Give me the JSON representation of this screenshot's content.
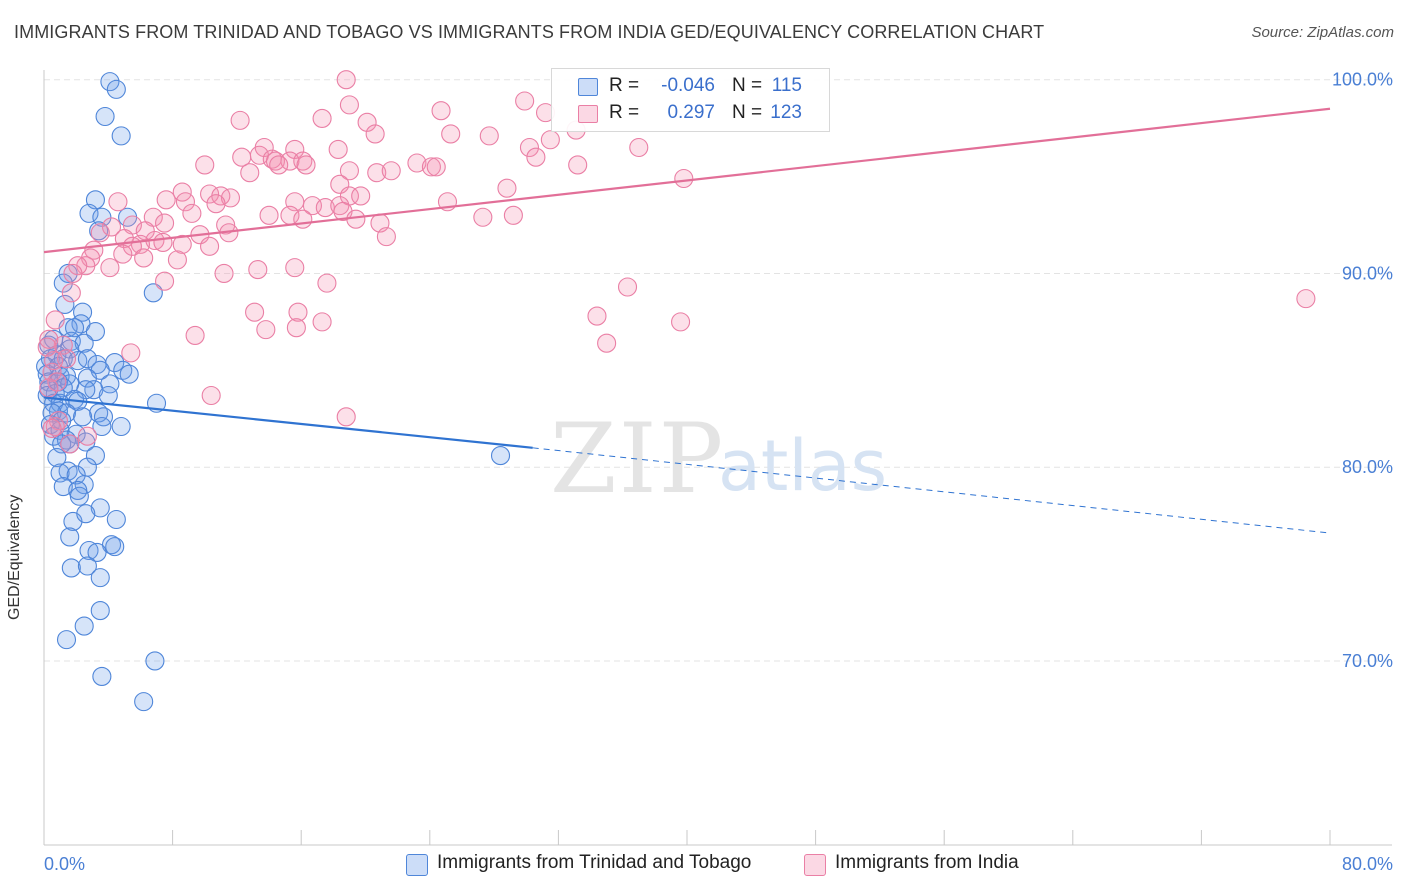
{
  "title": "IMMIGRANTS FROM TRINIDAD AND TOBAGO VS IMMIGRANTS FROM INDIA GED/EQUIVALENCY CORRELATION CHART",
  "source": "Source: ZipAtlas.com",
  "watermark": {
    "zip": "ZIP",
    "atlas": "atlas"
  },
  "colors": {
    "blue_fill": "rgba(109,158,235,0.28)",
    "blue_stroke": "#4f86d9",
    "blue_line": "#2f73d1",
    "pink_fill": "rgba(244,143,177,0.28)",
    "pink_stroke": "#ea7fa5",
    "pink_line": "#e26f98",
    "tick_label": "#4a7fd4"
  },
  "legend": {
    "rows": [
      {
        "r_label": "R =",
        "r_value": "-0.046",
        "n_label": "N =",
        "n_value": "115"
      },
      {
        "r_label": "R =",
        "r_value": "0.297",
        "n_label": "N =",
        "n_value": "123"
      }
    ]
  },
  "bottom_legend": {
    "series1": "Immigrants from Trinidad and Tobago",
    "series2": "Immigrants from India"
  },
  "chart_data": {
    "type": "scatter",
    "title": "IMMIGRANTS FROM TRINIDAD AND TOBAGO VS IMMIGRANTS FROM INDIA GED/EQUIVALENCY CORRELATION CHART",
    "xlabel": "",
    "ylabel": "GED/Equivalency",
    "xlim": [
      0,
      80
    ],
    "ylim": [
      60.5,
      100.5
    ],
    "x_tick_labels": [
      "0.0%",
      "80.0%"
    ],
    "y_ticks": [
      100,
      90,
      80,
      70
    ],
    "y_tick_labels": [
      "100.0%",
      "90.0%",
      "80.0%",
      "70.0%"
    ],
    "grid": true,
    "series": [
      {
        "name": "Immigrants from Trinidad and Tobago",
        "r": -0.046,
        "n": 115,
        "trend": {
          "x0": 0,
          "y0": 83.6,
          "x1": 30.4,
          "y1": 81.0,
          "dash_x1": 80,
          "dash_y1": 76.6
        },
        "points": [
          [
            4.1,
            99.9
          ],
          [
            4.5,
            99.5
          ],
          [
            3.8,
            98.1
          ],
          [
            4.8,
            97.1
          ],
          [
            3.2,
            93.8
          ],
          [
            2.8,
            93.1
          ],
          [
            3.6,
            92.9
          ],
          [
            5.2,
            92.9
          ],
          [
            3.4,
            92.2
          ],
          [
            6.8,
            89.0
          ],
          [
            1.5,
            90.0
          ],
          [
            1.2,
            89.5
          ],
          [
            1.3,
            88.4
          ],
          [
            2.4,
            88.0
          ],
          [
            2.3,
            87.4
          ],
          [
            1.5,
            87.2
          ],
          [
            1.9,
            87.2
          ],
          [
            3.2,
            87.0
          ],
          [
            0.6,
            86.6
          ],
          [
            1.7,
            86.5
          ],
          [
            2.5,
            86.4
          ],
          [
            0.3,
            86.3
          ],
          [
            1.6,
            86.1
          ],
          [
            0.8,
            85.8
          ],
          [
            0.4,
            85.6
          ],
          [
            1.2,
            85.6
          ],
          [
            2.1,
            85.5
          ],
          [
            2.7,
            85.6
          ],
          [
            4.4,
            85.4
          ],
          [
            3.3,
            85.3
          ],
          [
            0.1,
            85.2
          ],
          [
            0.9,
            85.2
          ],
          [
            3.5,
            85.0
          ],
          [
            4.9,
            85.0
          ],
          [
            0.2,
            84.8
          ],
          [
            1.0,
            84.7
          ],
          [
            1.4,
            84.7
          ],
          [
            5.3,
            84.8
          ],
          [
            2.7,
            84.6
          ],
          [
            0.3,
            84.4
          ],
          [
            0.9,
            84.4
          ],
          [
            1.6,
            84.3
          ],
          [
            4.1,
            84.3
          ],
          [
            0.3,
            84.0
          ],
          [
            1.2,
            84.1
          ],
          [
            3.1,
            84.0
          ],
          [
            2.6,
            84.0
          ],
          [
            0.7,
            83.8
          ],
          [
            0.2,
            83.7
          ],
          [
            4.0,
            83.7
          ],
          [
            0.6,
            83.3
          ],
          [
            1.9,
            83.5
          ],
          [
            1.0,
            83.3
          ],
          [
            2.1,
            83.4
          ],
          [
            7.0,
            83.3
          ],
          [
            0.9,
            82.9
          ],
          [
            1.4,
            82.8
          ],
          [
            3.4,
            82.8
          ],
          [
            0.5,
            82.8
          ],
          [
            2.4,
            82.6
          ],
          [
            3.7,
            82.6
          ],
          [
            1.1,
            82.4
          ],
          [
            0.4,
            82.2
          ],
          [
            3.6,
            82.1
          ],
          [
            4.8,
            82.1
          ],
          [
            1.0,
            81.9
          ],
          [
            0.6,
            81.6
          ],
          [
            2.0,
            81.7
          ],
          [
            1.4,
            81.4
          ],
          [
            2.6,
            81.3
          ],
          [
            1.1,
            81.2
          ],
          [
            1.6,
            81.2
          ],
          [
            0.8,
            80.5
          ],
          [
            3.2,
            80.6
          ],
          [
            2.7,
            80.0
          ],
          [
            1.5,
            79.8
          ],
          [
            1.0,
            79.7
          ],
          [
            2.0,
            79.6
          ],
          [
            2.5,
            79.1
          ],
          [
            1.2,
            79.0
          ],
          [
            2.1,
            78.8
          ],
          [
            2.2,
            78.5
          ],
          [
            3.5,
            77.9
          ],
          [
            1.8,
            77.2
          ],
          [
            2.6,
            77.6
          ],
          [
            4.5,
            77.3
          ],
          [
            1.6,
            76.4
          ],
          [
            4.2,
            76.0
          ],
          [
            4.4,
            75.9
          ],
          [
            2.8,
            75.7
          ],
          [
            3.3,
            75.6
          ],
          [
            1.7,
            74.8
          ],
          [
            2.7,
            74.9
          ],
          [
            3.5,
            74.3
          ],
          [
            3.5,
            72.6
          ],
          [
            2.5,
            71.8
          ],
          [
            1.4,
            71.1
          ],
          [
            6.9,
            70.0
          ],
          [
            3.6,
            69.2
          ],
          [
            6.2,
            67.9
          ],
          [
            28.4,
            80.6
          ]
        ]
      },
      {
        "name": "Immigrants from India",
        "r": 0.297,
        "n": 123,
        "trend": {
          "x0": 0,
          "y0": 91.1,
          "x1": 80,
          "y1": 98.5
        },
        "points": [
          [
            18.8,
            100.0
          ],
          [
            29.9,
            98.9
          ],
          [
            19.0,
            98.7
          ],
          [
            24.7,
            98.4
          ],
          [
            31.2,
            98.3
          ],
          [
            12.2,
            97.9
          ],
          [
            17.3,
            98.0
          ],
          [
            20.1,
            97.8
          ],
          [
            33.1,
            97.4
          ],
          [
            31.5,
            96.9
          ],
          [
            25.3,
            97.2
          ],
          [
            27.7,
            97.1
          ],
          [
            20.6,
            97.2
          ],
          [
            13.7,
            96.5
          ],
          [
            15.6,
            96.4
          ],
          [
            30.2,
            96.5
          ],
          [
            37.0,
            96.5
          ],
          [
            18.3,
            96.4
          ],
          [
            12.3,
            96.0
          ],
          [
            13.4,
            96.1
          ],
          [
            14.2,
            95.9
          ],
          [
            14.4,
            95.8
          ],
          [
            15.3,
            95.8
          ],
          [
            16.1,
            95.8
          ],
          [
            30.6,
            96.0
          ],
          [
            10.0,
            95.6
          ],
          [
            14.6,
            95.6
          ],
          [
            23.2,
            95.7
          ],
          [
            33.2,
            95.6
          ],
          [
            24.1,
            95.5
          ],
          [
            24.4,
            95.5
          ],
          [
            16.3,
            95.6
          ],
          [
            19.0,
            95.3
          ],
          [
            20.7,
            95.2
          ],
          [
            21.6,
            95.3
          ],
          [
            12.8,
            95.2
          ],
          [
            39.8,
            94.9
          ],
          [
            18.4,
            94.6
          ],
          [
            8.6,
            94.2
          ],
          [
            10.3,
            94.1
          ],
          [
            11.0,
            94.0
          ],
          [
            11.6,
            93.9
          ],
          [
            28.8,
            94.4
          ],
          [
            19.0,
            94.0
          ],
          [
            19.7,
            94.0
          ],
          [
            7.6,
            93.8
          ],
          [
            8.8,
            93.7
          ],
          [
            10.7,
            93.6
          ],
          [
            4.6,
            93.7
          ],
          [
            15.6,
            93.7
          ],
          [
            16.7,
            93.5
          ],
          [
            17.5,
            93.4
          ],
          [
            18.4,
            93.5
          ],
          [
            25.1,
            93.7
          ],
          [
            18.6,
            93.2
          ],
          [
            9.2,
            93.1
          ],
          [
            6.8,
            92.9
          ],
          [
            7.5,
            92.6
          ],
          [
            14.0,
            93.0
          ],
          [
            15.3,
            93.0
          ],
          [
            16.1,
            92.8
          ],
          [
            19.4,
            92.8
          ],
          [
            20.9,
            92.6
          ],
          [
            11.3,
            92.5
          ],
          [
            29.2,
            93.0
          ],
          [
            27.3,
            92.9
          ],
          [
            4.2,
            92.4
          ],
          [
            5.5,
            92.5
          ],
          [
            3.5,
            92.1
          ],
          [
            6.3,
            92.2
          ],
          [
            9.7,
            92.0
          ],
          [
            11.5,
            92.1
          ],
          [
            21.3,
            91.9
          ],
          [
            5.0,
            91.8
          ],
          [
            6.9,
            91.7
          ],
          [
            6.0,
            91.5
          ],
          [
            7.4,
            91.6
          ],
          [
            3.1,
            91.2
          ],
          [
            5.5,
            91.4
          ],
          [
            8.6,
            91.5
          ],
          [
            10.3,
            91.4
          ],
          [
            4.9,
            91.0
          ],
          [
            2.9,
            90.8
          ],
          [
            6.2,
            90.8
          ],
          [
            8.3,
            90.7
          ],
          [
            2.6,
            90.4
          ],
          [
            2.1,
            90.4
          ],
          [
            4.1,
            90.3
          ],
          [
            13.3,
            90.2
          ],
          [
            1.8,
            90.0
          ],
          [
            11.2,
            90.0
          ],
          [
            15.6,
            90.3
          ],
          [
            7.5,
            89.6
          ],
          [
            17.6,
            89.5
          ],
          [
            1.7,
            89.0
          ],
          [
            36.3,
            89.3
          ],
          [
            13.1,
            88.0
          ],
          [
            15.8,
            88.0
          ],
          [
            34.4,
            87.8
          ],
          [
            39.6,
            87.5
          ],
          [
            17.3,
            87.5
          ],
          [
            13.8,
            87.1
          ],
          [
            15.7,
            87.2
          ],
          [
            0.7,
            87.6
          ],
          [
            1.2,
            86.3
          ],
          [
            9.4,
            86.8
          ],
          [
            35.0,
            86.4
          ],
          [
            0.3,
            86.6
          ],
          [
            0.2,
            86.2
          ],
          [
            5.4,
            85.9
          ],
          [
            1.4,
            85.6
          ],
          [
            0.6,
            85.5
          ],
          [
            0.5,
            84.9
          ],
          [
            0.8,
            84.4
          ],
          [
            0.3,
            84.1
          ],
          [
            10.4,
            83.7
          ],
          [
            18.8,
            82.6
          ],
          [
            0.9,
            82.4
          ],
          [
            0.7,
            82.1
          ],
          [
            0.5,
            82.0
          ],
          [
            78.5,
            88.7
          ],
          [
            1.6,
            81.2
          ],
          [
            2.7,
            81.6
          ]
        ]
      }
    ]
  }
}
